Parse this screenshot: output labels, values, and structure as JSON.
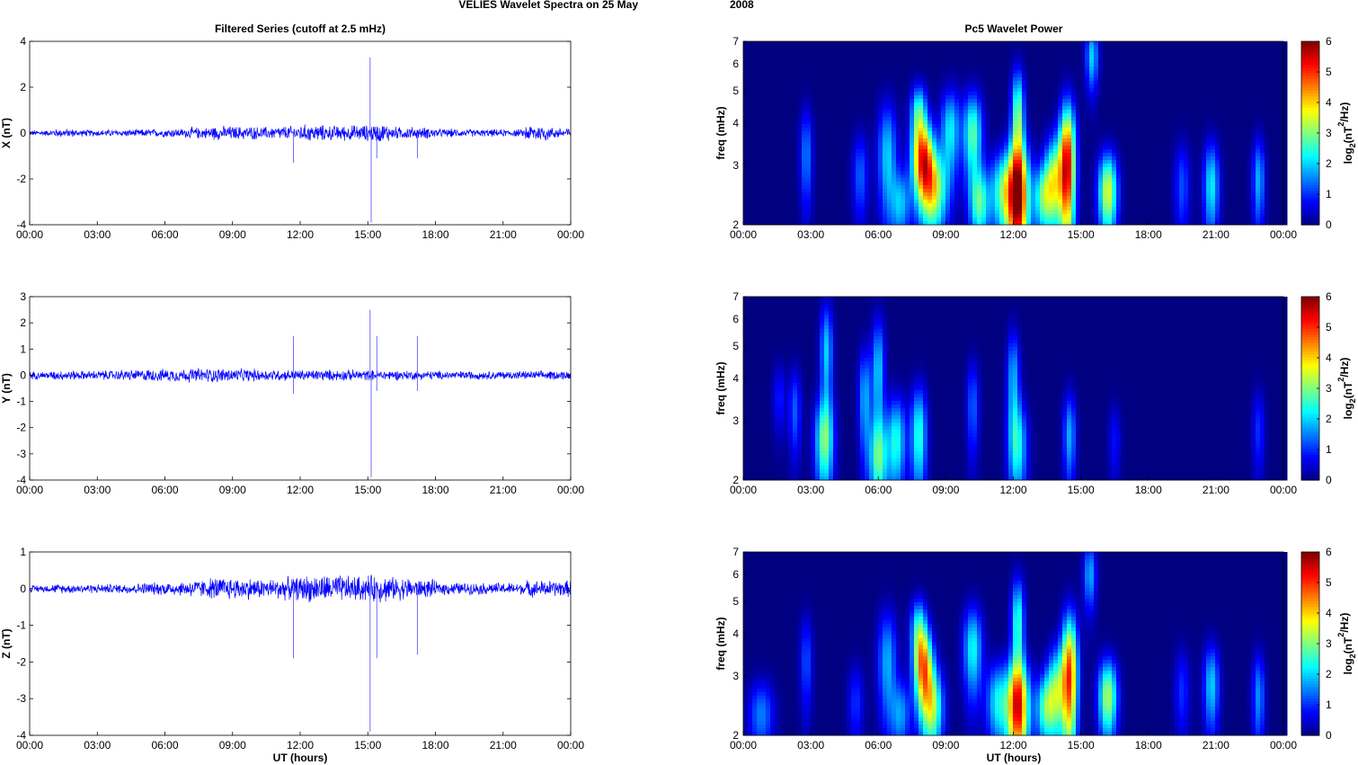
{
  "figure": {
    "title_left": "VELIES Wavelet Spectra on 25 May",
    "title_right": "2008",
    "left_header": "Filtered Series (cutoff at 2.5 mHz)",
    "right_header": "Pc5 Wavelet Power",
    "xlabel": "UT (hours)",
    "spectrum_ylabel": "freq (mHz)",
    "colorbar_label_main": "log",
    "colorbar_label_sub": "2",
    "colorbar_label_rest": "(nT",
    "colorbar_label_sup": "2",
    "colorbar_label_end": "/Hz)",
    "x_ticks": [
      "00:00",
      "03:00",
      "06:00",
      "09:00",
      "12:00",
      "15:00",
      "18:00",
      "21:00",
      "00:00"
    ],
    "freq_ticks": [
      "2",
      "3",
      "4",
      "5",
      "6",
      "7"
    ],
    "colorbar_ticks": [
      "0",
      "1",
      "2",
      "3",
      "4",
      "5",
      "6"
    ],
    "colormap": "jet",
    "line_color": "#0000ff"
  },
  "chart_data": [
    {
      "type": "line",
      "panel": "X",
      "ylabel": "X (nT)",
      "xlim": [
        0,
        24
      ],
      "ylim": [
        -4,
        4
      ],
      "y_ticks": [
        "-4",
        "-2",
        "0",
        "2",
        "4"
      ],
      "noise_amplitude_by_hour": [
        0.1,
        0.15,
        0.12,
        0.12,
        0.13,
        0.14,
        0.16,
        0.2,
        0.25,
        0.24,
        0.22,
        0.25,
        0.3,
        0.27,
        0.28,
        0.32,
        0.22,
        0.2,
        0.15,
        0.13,
        0.13,
        0.13,
        0.3,
        0.2
      ],
      "spikes": [
        {
          "t": 11.7,
          "y": -1.3
        },
        {
          "t": 15.1,
          "y": 3.3
        },
        {
          "t": 15.15,
          "y": -3.9
        },
        {
          "t": 15.4,
          "y": -1.1
        },
        {
          "t": 17.2,
          "y": -1.1
        }
      ]
    },
    {
      "type": "line",
      "panel": "Y",
      "ylabel": "Y (nT)",
      "xlim": [
        0,
        24
      ],
      "ylim": [
        -4,
        3
      ],
      "y_ticks": [
        "-4",
        "-3",
        "-2",
        "-1",
        "0",
        "1",
        "2",
        "3"
      ],
      "noise_amplitude_by_hour": [
        0.12,
        0.15,
        0.14,
        0.15,
        0.17,
        0.19,
        0.2,
        0.22,
        0.22,
        0.2,
        0.18,
        0.17,
        0.17,
        0.17,
        0.17,
        0.16,
        0.15,
        0.14,
        0.13,
        0.13,
        0.13,
        0.13,
        0.13,
        0.14
      ],
      "spikes": [
        {
          "t": 11.7,
          "y": 1.5
        },
        {
          "t": 11.7,
          "y": -0.7
        },
        {
          "t": 15.1,
          "y": 2.5
        },
        {
          "t": 15.15,
          "y": -3.9
        },
        {
          "t": 15.4,
          "y": 1.5
        },
        {
          "t": 15.4,
          "y": -0.6
        },
        {
          "t": 17.2,
          "y": 1.5
        },
        {
          "t": 17.2,
          "y": -0.6
        }
      ]
    },
    {
      "type": "line",
      "panel": "Z",
      "ylabel": "Z (nT)",
      "xlim": [
        0,
        24
      ],
      "ylim": [
        -4,
        1
      ],
      "y_ticks": [
        "-4",
        "-3",
        "-2",
        "-1",
        "0",
        "1"
      ],
      "noise_amplitude_by_hour": [
        0.08,
        0.1,
        0.1,
        0.1,
        0.12,
        0.14,
        0.16,
        0.2,
        0.25,
        0.24,
        0.22,
        0.25,
        0.3,
        0.3,
        0.28,
        0.3,
        0.25,
        0.2,
        0.14,
        0.13,
        0.13,
        0.13,
        0.18,
        0.18
      ],
      "spikes": [
        {
          "t": 11.7,
          "y": -1.9
        },
        {
          "t": 15.1,
          "y": -3.9
        },
        {
          "t": 15.4,
          "y": -1.9
        },
        {
          "t": 17.2,
          "y": -1.8
        }
      ]
    },
    {
      "type": "heatmap",
      "panel": "X",
      "xlim": [
        0,
        24
      ],
      "ylim_mhz": [
        2,
        7
      ],
      "ylog": true,
      "clim": [
        0,
        6
      ],
      "blobs": [
        {
          "t": 8.0,
          "f": 3.1,
          "p": 4.8,
          "wt": 0.35,
          "wf": 0.6
        },
        {
          "t": 8.5,
          "f": 2.5,
          "p": 3.0,
          "wt": 0.4,
          "wf": 0.5
        },
        {
          "t": 7.8,
          "f": 4.3,
          "p": 2.5,
          "wt": 0.25,
          "wf": 0.6
        },
        {
          "t": 9.2,
          "f": 3.8,
          "p": 2.2,
          "wt": 0.3,
          "wf": 0.8
        },
        {
          "t": 10.2,
          "f": 3.7,
          "p": 2.8,
          "wt": 0.3,
          "wf": 0.8
        },
        {
          "t": 10.5,
          "f": 2.3,
          "p": 2.5,
          "wt": 0.3,
          "wf": 0.4
        },
        {
          "t": 12.2,
          "f": 2.4,
          "p": 5.6,
          "wt": 0.35,
          "wf": 0.7
        },
        {
          "t": 12.2,
          "f": 4.2,
          "p": 3.0,
          "wt": 0.2,
          "wf": 1.0
        },
        {
          "t": 11.5,
          "f": 2.5,
          "p": 2.5,
          "wt": 0.4,
          "wf": 0.5
        },
        {
          "t": 13.3,
          "f": 2.4,
          "p": 2.4,
          "wt": 0.3,
          "wf": 0.4
        },
        {
          "t": 14.4,
          "f": 3.0,
          "p": 5.4,
          "wt": 0.25,
          "wf": 1.0
        },
        {
          "t": 13.8,
          "f": 2.7,
          "p": 3.2,
          "wt": 0.3,
          "wf": 0.6
        },
        {
          "t": 16.2,
          "f": 2.5,
          "p": 3.6,
          "wt": 0.3,
          "wf": 0.5
        },
        {
          "t": 6.4,
          "f": 3.2,
          "p": 2.0,
          "wt": 0.3,
          "wf": 0.9
        },
        {
          "t": 5.2,
          "f": 2.8,
          "p": 1.3,
          "wt": 0.25,
          "wf": 0.6
        },
        {
          "t": 2.8,
          "f": 3.2,
          "p": 1.5,
          "wt": 0.2,
          "wf": 0.8
        },
        {
          "t": 20.8,
          "f": 2.6,
          "p": 2.2,
          "wt": 0.25,
          "wf": 0.6
        },
        {
          "t": 19.5,
          "f": 2.6,
          "p": 1.2,
          "wt": 0.25,
          "wf": 0.6
        },
        {
          "t": 22.9,
          "f": 2.7,
          "p": 1.8,
          "wt": 0.2,
          "wf": 0.6
        },
        {
          "t": 15.5,
          "f": 6.3,
          "p": 2.0,
          "wt": 0.2,
          "wf": 1.0
        },
        {
          "t": 7.0,
          "f": 2.3,
          "p": 1.8,
          "wt": 0.3,
          "wf": 0.4
        }
      ]
    },
    {
      "type": "heatmap",
      "panel": "Y",
      "xlim": [
        0,
        24
      ],
      "ylim_mhz": [
        2,
        7
      ],
      "ylog": true,
      "clim": [
        0,
        6
      ],
      "blobs": [
        {
          "t": 3.6,
          "f": 2.6,
          "p": 2.8,
          "wt": 0.3,
          "wf": 0.6
        },
        {
          "t": 3.7,
          "f": 4.8,
          "p": 2.0,
          "wt": 0.2,
          "wf": 1.2
        },
        {
          "t": 6.0,
          "f": 2.3,
          "p": 2.4,
          "wt": 0.3,
          "wf": 0.5
        },
        {
          "t": 6.0,
          "f": 4.2,
          "p": 2.0,
          "wt": 0.2,
          "wf": 1.2
        },
        {
          "t": 6.8,
          "f": 2.6,
          "p": 2.4,
          "wt": 0.3,
          "wf": 0.6
        },
        {
          "t": 7.8,
          "f": 2.7,
          "p": 2.5,
          "wt": 0.25,
          "wf": 0.7
        },
        {
          "t": 5.4,
          "f": 3.5,
          "p": 1.8,
          "wt": 0.2,
          "wf": 0.9
        },
        {
          "t": 2.3,
          "f": 3.2,
          "p": 1.3,
          "wt": 0.2,
          "wf": 0.7
        },
        {
          "t": 12.2,
          "f": 2.5,
          "p": 2.2,
          "wt": 0.3,
          "wf": 0.6
        },
        {
          "t": 12.0,
          "f": 4.0,
          "p": 1.8,
          "wt": 0.2,
          "wf": 1.0
        },
        {
          "t": 14.5,
          "f": 2.7,
          "p": 1.8,
          "wt": 0.2,
          "wf": 0.6
        },
        {
          "t": 10.2,
          "f": 3.3,
          "p": 1.3,
          "wt": 0.2,
          "wf": 0.8
        },
        {
          "t": 1.6,
          "f": 3.5,
          "p": 0.9,
          "wt": 0.2,
          "wf": 0.6
        },
        {
          "t": 22.9,
          "f": 2.8,
          "p": 1.0,
          "wt": 0.2,
          "wf": 0.6
        },
        {
          "t": 16.5,
          "f": 2.6,
          "p": 0.8,
          "wt": 0.2,
          "wf": 0.5
        }
      ]
    },
    {
      "type": "heatmap",
      "panel": "Z",
      "xlim": [
        0,
        24
      ],
      "ylim_mhz": [
        2,
        7
      ],
      "ylog": true,
      "clim": [
        0,
        6
      ],
      "blobs": [
        {
          "t": 8.0,
          "f": 3.2,
          "p": 4.2,
          "wt": 0.3,
          "wf": 0.6
        },
        {
          "t": 8.4,
          "f": 2.4,
          "p": 3.0,
          "wt": 0.35,
          "wf": 0.5
        },
        {
          "t": 7.8,
          "f": 4.2,
          "p": 2.2,
          "wt": 0.25,
          "wf": 0.6
        },
        {
          "t": 10.2,
          "f": 3.6,
          "p": 2.3,
          "wt": 0.3,
          "wf": 0.8
        },
        {
          "t": 12.2,
          "f": 2.4,
          "p": 5.2,
          "wt": 0.35,
          "wf": 0.6
        },
        {
          "t": 12.2,
          "f": 4.3,
          "p": 2.6,
          "wt": 0.2,
          "wf": 1.0
        },
        {
          "t": 11.3,
          "f": 2.5,
          "p": 2.2,
          "wt": 0.35,
          "wf": 0.5
        },
        {
          "t": 13.4,
          "f": 2.4,
          "p": 2.4,
          "wt": 0.3,
          "wf": 0.4
        },
        {
          "t": 14.5,
          "f": 3.0,
          "p": 4.8,
          "wt": 0.25,
          "wf": 1.0
        },
        {
          "t": 13.9,
          "f": 2.7,
          "p": 2.8,
          "wt": 0.3,
          "wf": 0.6
        },
        {
          "t": 16.2,
          "f": 2.6,
          "p": 3.3,
          "wt": 0.3,
          "wf": 0.5
        },
        {
          "t": 6.4,
          "f": 3.3,
          "p": 1.8,
          "wt": 0.3,
          "wf": 0.9
        },
        {
          "t": 0.8,
          "f": 2.3,
          "p": 1.5,
          "wt": 0.4,
          "wf": 0.4
        },
        {
          "t": 2.8,
          "f": 3.3,
          "p": 1.2,
          "wt": 0.2,
          "wf": 0.8
        },
        {
          "t": 20.8,
          "f": 2.8,
          "p": 2.0,
          "wt": 0.25,
          "wf": 0.6
        },
        {
          "t": 19.5,
          "f": 2.7,
          "p": 1.0,
          "wt": 0.25,
          "wf": 0.6
        },
        {
          "t": 22.9,
          "f": 2.6,
          "p": 1.6,
          "wt": 0.2,
          "wf": 0.6
        },
        {
          "t": 15.4,
          "f": 6.0,
          "p": 1.8,
          "wt": 0.2,
          "wf": 1.0
        },
        {
          "t": 7.0,
          "f": 2.3,
          "p": 1.6,
          "wt": 0.3,
          "wf": 0.4
        },
        {
          "t": 5.0,
          "f": 2.5,
          "p": 1.0,
          "wt": 0.25,
          "wf": 0.5
        }
      ]
    }
  ]
}
